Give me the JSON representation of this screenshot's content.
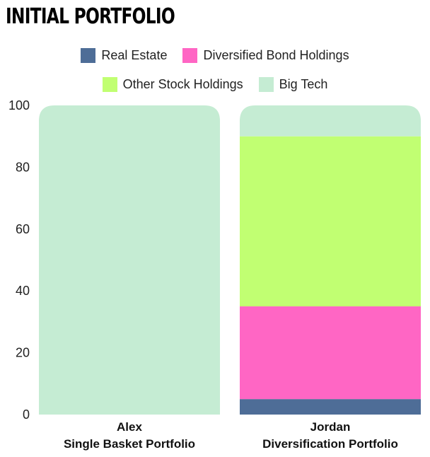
{
  "chart_data": {
    "type": "bar",
    "stacked": true,
    "title": "INITIAL PORTFOLIO",
    "categories": [
      [
        "Alex",
        "Single Basket Portfolio"
      ],
      [
        "Jordan",
        "Diversification Portfolio"
      ]
    ],
    "series": [
      {
        "name": "Real Estate",
        "color": "#4e6d97",
        "values": [
          0,
          5
        ]
      },
      {
        "name": "Diversified Bond Holdings",
        "color": "#ff66c4",
        "values": [
          0,
          30
        ]
      },
      {
        "name": "Other Stock Holdings",
        "color": "#c1ff72",
        "values": [
          0,
          55
        ]
      },
      {
        "name": "Big Tech",
        "color": "#c5ecd3",
        "values": [
          100,
          10
        ]
      }
    ],
    "legend_order": [
      0,
      1,
      2,
      3
    ],
    "legend_placement": "top-center",
    "yticks": [
      0,
      20,
      40,
      60,
      80,
      100
    ],
    "ylim": [
      0,
      100
    ],
    "grid": false
  }
}
